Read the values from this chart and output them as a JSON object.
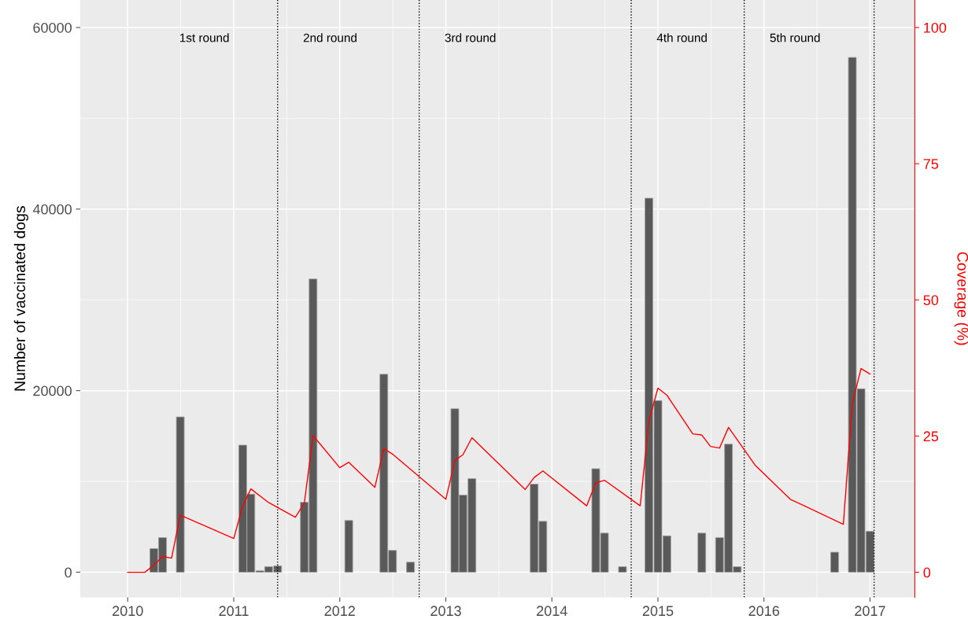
{
  "chart_data": {
    "type": "bar",
    "ylabel": "Number of vaccinated dogs",
    "y2label": "Coverage (%)",
    "xlim": [
      "2009-07-22",
      "2017-06-04"
    ],
    "xticks": [
      "2010",
      "2011",
      "2012",
      "2013",
      "2014",
      "2015",
      "2016",
      "2017"
    ],
    "ylim": [
      -2770,
      63030
    ],
    "yticks": [
      0,
      20000,
      40000,
      60000
    ],
    "y2lim": [
      -4.6,
      105.05
    ],
    "y2ticks": [
      0,
      25,
      50,
      75,
      100
    ],
    "grid": true,
    "legend": false,
    "series": [
      {
        "color": "#595959",
        "x": [
          "2010-04",
          "2010-05",
          "2010-07",
          "2011-02",
          "2011-03",
          "2011-04",
          "2011-05",
          "2011-06",
          "2011-09",
          "2011-10",
          "2012-02",
          "2012-06",
          "2012-07",
          "2012-09",
          "2013-02",
          "2013-03",
          "2013-04",
          "2013-11",
          "2013-12",
          "2014-06",
          "2014-07",
          "2014-09",
          "2014-12",
          "2015-01",
          "2015-02",
          "2015-06",
          "2015-08",
          "2015-09",
          "2015-10",
          "2016-09",
          "2016-11",
          "2016-12",
          "2017-01"
        ],
        "values": [
          2600,
          3800,
          17100,
          14000,
          8600,
          150,
          600,
          700,
          7700,
          32300,
          5700,
          21800,
          2400,
          1100,
          18000,
          8500,
          10300,
          9700,
          5600,
          11400,
          4300,
          600,
          41200,
          18900,
          4000,
          4300,
          3800,
          14100,
          600,
          2200,
          56700,
          20200,
          4500
        ]
      },
      {
        "type": "line",
        "axis": "y2",
        "color": "#ff0000",
        "x": [
          "2010-01",
          "2010-03",
          "2010-04",
          "2010-05",
          "2010-06",
          "2010-07",
          "2011-01",
          "2011-02",
          "2011-03",
          "2011-05",
          "2011-08",
          "2011-09",
          "2011-10",
          "2012-01",
          "2012-02",
          "2012-05",
          "2012-06",
          "2012-07",
          "2013-01",
          "2013-02",
          "2013-03",
          "2013-04",
          "2013-10",
          "2013-11",
          "2013-12",
          "2014-05",
          "2014-06",
          "2014-07",
          "2014-11",
          "2014-12",
          "2015-01",
          "2015-02",
          "2015-05",
          "2015-06",
          "2015-07",
          "2015-08",
          "2015-09",
          "2015-12",
          "2016-04",
          "2016-10",
          "2016-11",
          "2016-12",
          "2017-01"
        ],
        "values": [
          0,
          0,
          1.3,
          2.9,
          2.6,
          10.5,
          6.2,
          12.2,
          15.3,
          12.8,
          10.1,
          12.7,
          25.1,
          19.2,
          20.2,
          15.6,
          22.7,
          21.7,
          13.4,
          20.5,
          21.6,
          24.7,
          15.2,
          17.4,
          18.6,
          12.2,
          16.4,
          16.9,
          12.2,
          27.8,
          33.8,
          32.5,
          25.4,
          25.2,
          23.1,
          22.8,
          26.6,
          19.7,
          13.4,
          8.8,
          31.0,
          37.4,
          36.4
        ]
      }
    ],
    "ref_lines": [
      {
        "axis": "x",
        "value": "2011-06",
        "color": "#000000",
        "line_style": "dotted"
      },
      {
        "axis": "x",
        "value": "2012-10",
        "color": "#000000",
        "line_style": "dotted"
      },
      {
        "axis": "x",
        "value": "2014-10",
        "color": "#000000",
        "line_style": "dotted"
      },
      {
        "axis": "x",
        "value": "2015-10-25",
        "color": "#000000",
        "line_style": "dotted"
      },
      {
        "axis": "x",
        "value": "2017-01-15",
        "color": "#000000",
        "line_style": "dotted"
      }
    ],
    "annotations": [
      "1st round",
      "2nd round",
      "3rd round",
      "4th round",
      "5th round"
    ]
  }
}
